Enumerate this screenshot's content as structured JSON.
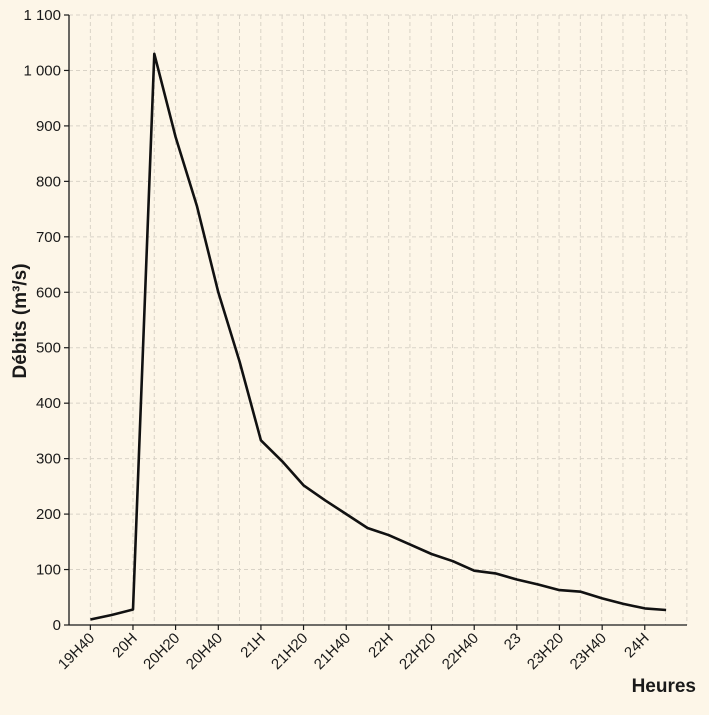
{
  "chart_data": {
    "type": "line",
    "title": "",
    "xlabel": "Heures",
    "ylabel": "Débits (m³/s)",
    "ylim": [
      0,
      1100
    ],
    "yticks": [
      0,
      100,
      200,
      300,
      400,
      500,
      600,
      700,
      800,
      900,
      1000,
      1100
    ],
    "ytick_labels": [
      "0",
      "100",
      "200",
      "300",
      "400",
      "500",
      "600",
      "700",
      "800",
      "900",
      "1 000",
      "1 100"
    ],
    "grid": true,
    "xlim": [
      19.5,
      24.33
    ],
    "xticks": [
      19.667,
      20.0,
      20.333,
      20.667,
      21.0,
      21.333,
      21.667,
      22.0,
      22.333,
      22.667,
      23.0,
      23.333,
      23.667,
      24.0
    ],
    "xtick_labels": [
      "19H40",
      "20H",
      "20H20",
      "20H40",
      "21H",
      "21H20",
      "21H40",
      "22H",
      "22H20",
      "22H40",
      "23",
      "23H20",
      "23H40",
      "24H"
    ],
    "series": [
      {
        "name": "Débits",
        "color": "#111111",
        "x": [
          19.667,
          19.833,
          20.0,
          20.167,
          20.333,
          20.5,
          20.667,
          20.833,
          21.0,
          21.167,
          21.333,
          21.5,
          21.667,
          21.833,
          22.0,
          22.167,
          22.333,
          22.5,
          22.667,
          22.833,
          23.0,
          23.167,
          23.333,
          23.5,
          23.667,
          23.833,
          24.0,
          24.167
        ],
        "values": [
          10,
          18,
          28,
          1030,
          880,
          755,
          600,
          475,
          333,
          295,
          252,
          225,
          200,
          175,
          162,
          145,
          128,
          115,
          98,
          93,
          82,
          73,
          63,
          60,
          48,
          38,
          30,
          27
        ]
      }
    ]
  }
}
